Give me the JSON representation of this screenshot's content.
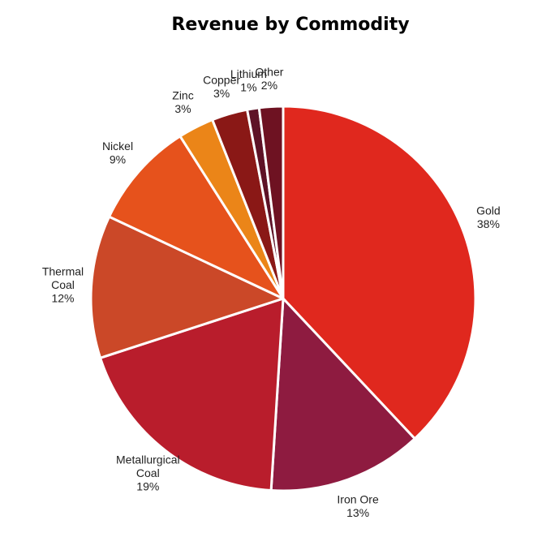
{
  "chart_data": {
    "type": "pie",
    "title": "Revenue by Commodity",
    "slices": [
      {
        "label": [
          "Gold"
        ],
        "value": 38,
        "pct_text": "38%",
        "color": "#e0281e"
      },
      {
        "label": [
          "Iron Ore"
        ],
        "value": 13,
        "pct_text": "13%",
        "color": "#8e1b40"
      },
      {
        "label": [
          "Metallurgical",
          "Coal"
        ],
        "value": 19,
        "pct_text": "19%",
        "color": "#b91d2c"
      },
      {
        "label": [
          "Thermal",
          "Coal"
        ],
        "value": 12,
        "pct_text": "12%",
        "color": "#cb4828"
      },
      {
        "label": [
          "Nickel"
        ],
        "value": 9,
        "pct_text": "9%",
        "color": "#e6521c"
      },
      {
        "label": [
          "Zinc"
        ],
        "value": 3,
        "pct_text": "3%",
        "color": "#eb8518"
      },
      {
        "label": [
          "Copper"
        ],
        "value": 3,
        "pct_text": "3%",
        "color": "#8a1816"
      },
      {
        "label": [
          "Lithium"
        ],
        "value": 1,
        "pct_text": "1%",
        "color": "#5e1226"
      },
      {
        "label": [
          "Other"
        ],
        "value": 2,
        "pct_text": "2%",
        "color": "#6e1222"
      }
    ]
  }
}
